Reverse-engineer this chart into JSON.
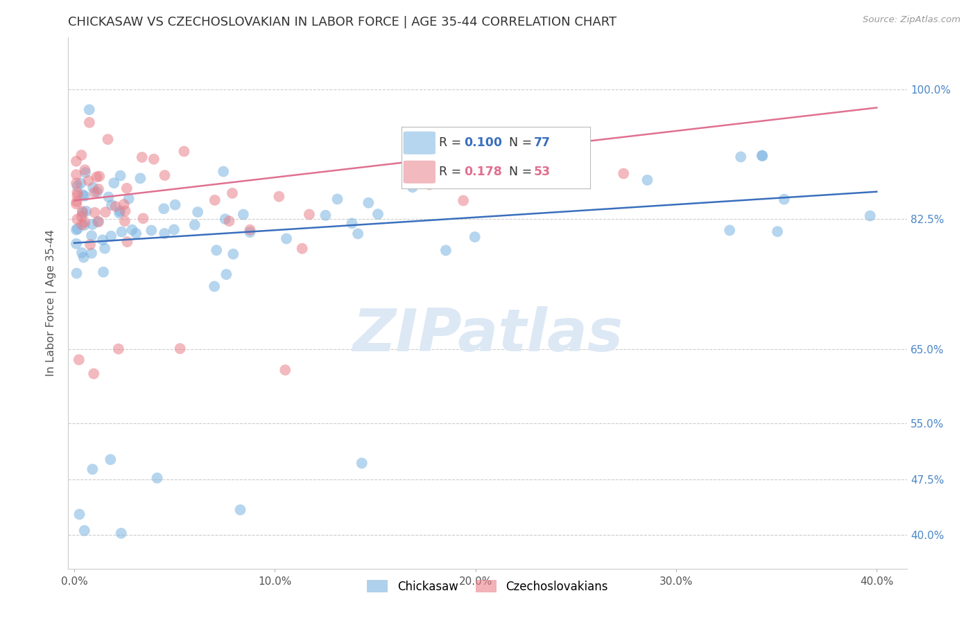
{
  "title": "CHICKASAW VS CZECHOSLOVAKIAN IN LABOR FORCE | AGE 35-44 CORRELATION CHART",
  "source": "Source: ZipAtlas.com",
  "ylabel_label": "In Labor Force | Age 35-44",
  "ytick_vals": [
    0.4,
    0.475,
    0.55,
    0.65,
    0.825,
    1.0
  ],
  "ytick_labels": [
    "40.0%",
    "47.5%",
    "55.0%",
    "65.0%",
    "82.5%",
    "100.0%"
  ],
  "xtick_vals": [
    0.0,
    0.1,
    0.2,
    0.3,
    0.4
  ],
  "xtick_labels": [
    "0.0%",
    "10.0%",
    "20.0%",
    "30.0%",
    "40.0%"
  ],
  "xlim": [
    -0.003,
    0.415
  ],
  "ylim": [
    0.355,
    1.07
  ],
  "blue_r": 0.1,
  "blue_n": 77,
  "pink_r": 0.178,
  "pink_n": 53,
  "blue_color": "#7ab3e0",
  "pink_color": "#e8808a",
  "blue_line_color": "#3a6fbd",
  "pink_line_color": "#e07090",
  "blue_tick_color": "#4a86c8",
  "grid_color": "#cccccc",
  "bg_color": "#ffffff",
  "watermark_text": "ZIPatlas",
  "watermark_color": "#dde8f5",
  "blue_trend": [
    0.0,
    0.793,
    0.4,
    0.862
  ],
  "pink_trend": [
    0.0,
    0.85,
    0.4,
    0.975
  ],
  "legend_blue_r": "0.100",
  "legend_blue_n": "77",
  "legend_pink_r": "0.178",
  "legend_pink_n": "53",
  "blue_seed": 42,
  "pink_seed": 99
}
